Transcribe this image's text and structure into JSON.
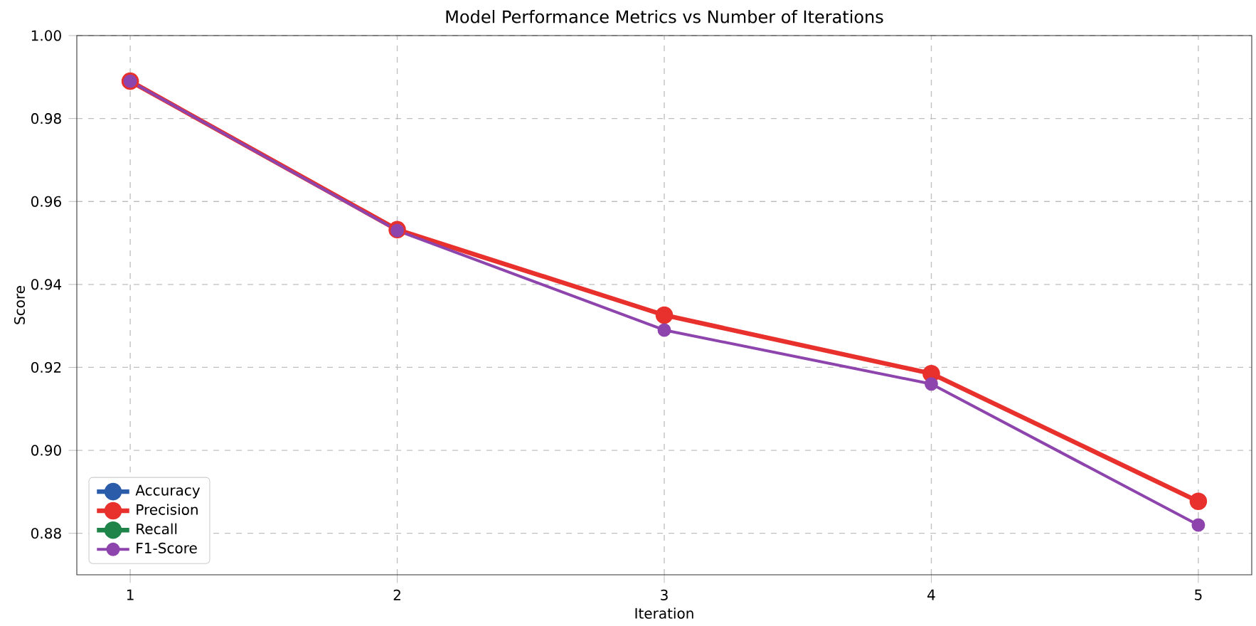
{
  "chart_data": {
    "type": "line",
    "title": "Model Performance Metrics vs Number of Iterations",
    "xlabel": "Iteration",
    "ylabel": "Score",
    "x": [
      1,
      2,
      3,
      4,
      5
    ],
    "series": [
      {
        "name": "Accuracy",
        "color": "#2a5caa",
        "values": [
          null,
          null,
          null,
          null,
          null
        ]
      },
      {
        "name": "Precision",
        "color": "#e8302c",
        "values": [
          0.989,
          0.9532,
          0.9326,
          0.9185,
          0.8877
        ]
      },
      {
        "name": "Recall",
        "color": "#1e8449",
        "values": [
          null,
          null,
          null,
          null,
          null
        ]
      },
      {
        "name": "F1-Score",
        "color": "#8e44ad",
        "values": [
          0.989,
          0.953,
          0.929,
          0.916,
          0.882
        ]
      }
    ],
    "xlim": [
      0.8,
      5.2
    ],
    "ylim": [
      0.87,
      1.0
    ],
    "xticks": [
      1,
      2,
      3,
      4,
      5
    ],
    "yticks": [
      {
        "value": 0.88,
        "label": "0.88"
      },
      {
        "value": 0.9,
        "label": "0.90"
      },
      {
        "value": 0.92,
        "label": "0.92"
      },
      {
        "value": 0.94,
        "label": "0.94"
      },
      {
        "value": 0.96,
        "label": "0.96"
      },
      {
        "value": 0.98,
        "label": "0.98"
      },
      {
        "value": 1.0,
        "label": "1.00"
      }
    ],
    "grid": true,
    "legend": "bottom left",
    "marker": "circle",
    "line_style": "solid"
  }
}
